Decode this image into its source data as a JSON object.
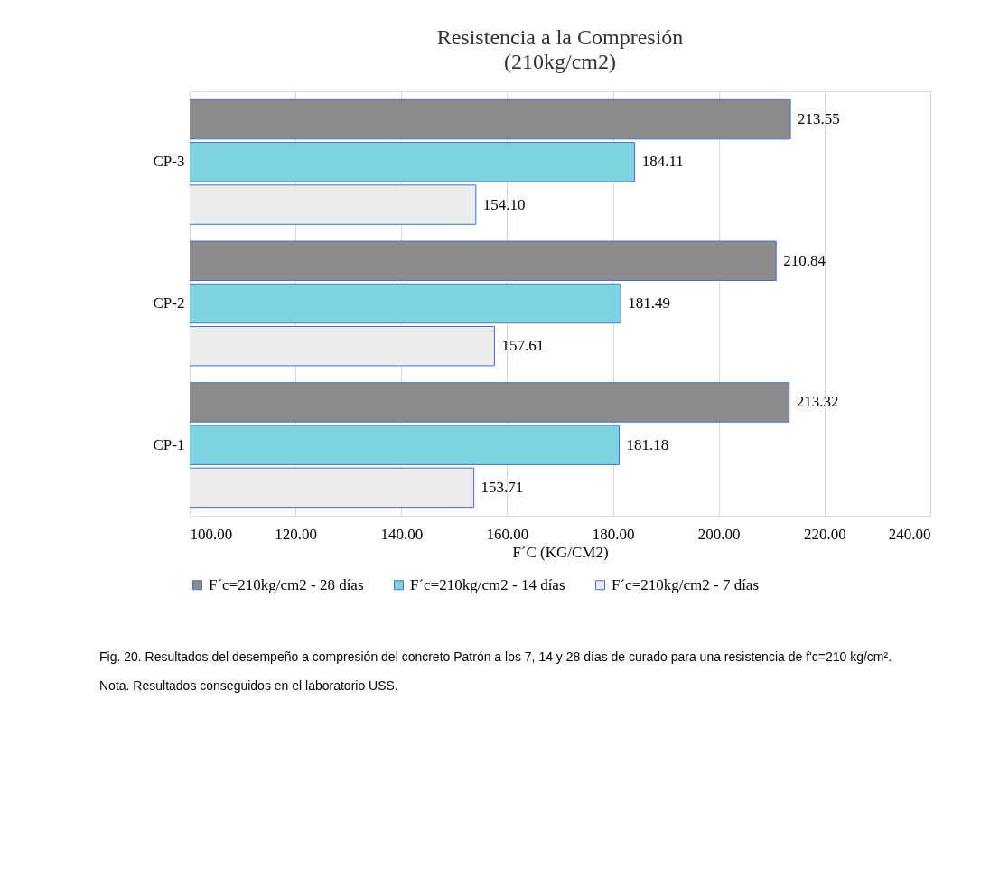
{
  "chart_data": {
    "type": "bar",
    "orientation": "horizontal",
    "title": "Resistencia a la Compresión",
    "subtitle": "(210kg/cm2)",
    "xlabel": "F´C (KG/CM2)",
    "categories": [
      "CP-3",
      "CP-2",
      "CP-1"
    ],
    "series": [
      {
        "name": "F´c=210kg/cm2 - 28 días",
        "color": "#8c8c8c",
        "values": [
          213.55,
          210.84,
          213.32
        ],
        "value_labels": [
          "213.55",
          "210.84",
          "213.32"
        ]
      },
      {
        "name": "F´c=210kg/cm2 - 14 días",
        "color": "#7fd3e0",
        "values": [
          184.11,
          181.49,
          181.18
        ],
        "value_labels": [
          "184.11",
          "181.49",
          "181.18"
        ]
      },
      {
        "name": "F´c=210kg/cm2 - 7 días",
        "color": "#ececec",
        "values": [
          154.1,
          157.61,
          153.71
        ],
        "value_labels": [
          "154.10",
          "157.61",
          "153.71"
        ]
      }
    ],
    "xlim": [
      100,
      240
    ],
    "xticks": [
      {
        "value": 100,
        "label": "100.00"
      },
      {
        "value": 120,
        "label": "120.00"
      },
      {
        "value": 140,
        "label": "140.00"
      },
      {
        "value": 160,
        "label": "160.00"
      },
      {
        "value": 180,
        "label": "180.00"
      },
      {
        "value": 200,
        "label": "200.00"
      },
      {
        "value": 220,
        "label": "220.00"
      },
      {
        "value": 240,
        "label": "240.00"
      }
    ],
    "grid": "x",
    "legend": "bottom",
    "annotations": [
      "Fig. 20. Resultados del desempeño a compresión del concreto Patrón a los 7, 14 y 28 días de curado para una resistencia de f'c=210 kg/cm².",
      "Nota. Resultados conseguidos en el laboratorio USS."
    ]
  }
}
